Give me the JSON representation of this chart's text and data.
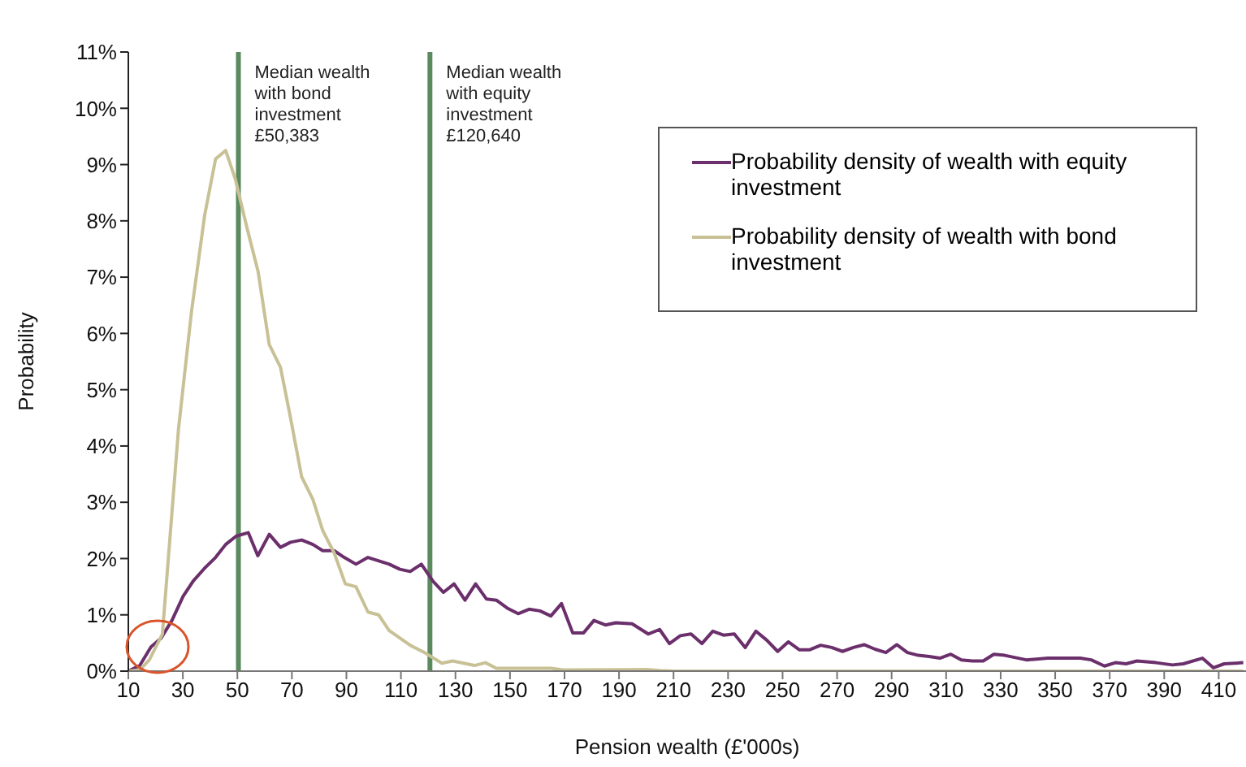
{
  "chart_data": {
    "type": "line",
    "xlabel": "Pension wealth (£'000s)",
    "ylabel": "Probability",
    "xlim": [
      10,
      420
    ],
    "xticks": [
      10,
      30,
      50,
      70,
      90,
      110,
      130,
      150,
      170,
      190,
      210,
      230,
      250,
      270,
      290,
      310,
      330,
      350,
      370,
      390,
      410
    ],
    "ylim": [
      0,
      11
    ],
    "yticks": [
      {
        "value": 0,
        "label": "0%"
      },
      {
        "value": 1,
        "label": "1%"
      },
      {
        "value": 2,
        "label": "2%"
      },
      {
        "value": 3,
        "label": "3%"
      },
      {
        "value": 4,
        "label": "4%"
      },
      {
        "value": 5,
        "label": "5%"
      },
      {
        "value": 6,
        "label": "6%"
      },
      {
        "value": 7,
        "label": "7%"
      },
      {
        "value": 8,
        "label": "8%"
      },
      {
        "value": 9,
        "label": "9%"
      },
      {
        "value": 10,
        "label": "10%"
      },
      {
        "value": 11,
        "label": "11%"
      }
    ],
    "grid": false,
    "legend": "top right",
    "marker": "none",
    "line_style": "solid",
    "ref_lines": [
      {
        "axis": "x",
        "value": 50.383,
        "label": "Median wealth with bond investment £50,383",
        "color": "#5a8a5e"
      },
      {
        "axis": "x",
        "value": 120.64,
        "label": "Median wealth with equity investment £120,640",
        "color": "#5a8a5e"
      }
    ],
    "series": [
      {
        "name": "Probability density of wealth with equity investment",
        "color": "#6b2f6b",
        "x": [
          10,
          14.2,
          18.3,
          21.9,
          26,
          30.1,
          33.8,
          38,
          42,
          45.7,
          49.6,
          54,
          57.5,
          61.7,
          65.8,
          69.5,
          73.6,
          77.7,
          81.3,
          85.5,
          89.2,
          93.5,
          97.9,
          105.7,
          109.6,
          113.4,
          117.5,
          121.7,
          125.6,
          129.5,
          133.5,
          137.4,
          141.4,
          145,
          149,
          153,
          157,
          161,
          165,
          168.9,
          173,
          177,
          180.8,
          185,
          188.8,
          194.8,
          200.7,
          204.9,
          208.5,
          212.5,
          216.4,
          220.4,
          224.4,
          228.3,
          232.3,
          236.3,
          240.2,
          244.2,
          248.2,
          252.1,
          256.1,
          260,
          264,
          268,
          272,
          276,
          279.9,
          283.9,
          287.9,
          291.9,
          295.8,
          299.8,
          303.8,
          307.7,
          311.7,
          315.6,
          319.6,
          323.6,
          327.5,
          331.5,
          339.4,
          347.3,
          359.2,
          363.2,
          368.1,
          372.1,
          376,
          380,
          387,
          393,
          397,
          404,
          408,
          412,
          419
        ],
        "values": [
          0,
          0.1,
          0.43,
          0.58,
          0.9,
          1.33,
          1.6,
          1.83,
          2.02,
          2.25,
          2.4,
          2.46,
          2.05,
          2.43,
          2.2,
          2.29,
          2.33,
          2.25,
          2.14,
          2.14,
          2.02,
          1.9,
          2.02,
          1.9,
          1.81,
          1.77,
          1.9,
          1.6,
          1.4,
          1.55,
          1.26,
          1.55,
          1.28,
          1.26,
          1.12,
          1.02,
          1.1,
          1.07,
          0.98,
          1.2,
          0.68,
          0.68,
          0.9,
          0.82,
          0.86,
          0.84,
          0.66,
          0.74,
          0.49,
          0.63,
          0.66,
          0.49,
          0.71,
          0.64,
          0.66,
          0.42,
          0.71,
          0.55,
          0.35,
          0.52,
          0.38,
          0.38,
          0.46,
          0.42,
          0.35,
          0.42,
          0.47,
          0.39,
          0.33,
          0.47,
          0.33,
          0.28,
          0.26,
          0.23,
          0.3,
          0.2,
          0.18,
          0.18,
          0.3,
          0.28,
          0.2,
          0.23,
          0.23,
          0.2,
          0.09,
          0.15,
          0.13,
          0.18,
          0.15,
          0.11,
          0.13,
          0.23,
          0.06,
          0.13,
          0.15
        ]
      },
      {
        "name": "Probability density of wealth with bond investment",
        "color": "#c9c196",
        "x": [
          10,
          14.2,
          17.7,
          22.5,
          28.4,
          33.2,
          38,
          42,
          45.7,
          49.2,
          53.4,
          57.6,
          61.7,
          65.8,
          69.5,
          73.6,
          77.7,
          81.3,
          85.5,
          89.6,
          93.5,
          97.9,
          101.8,
          105.7,
          113.4,
          119,
          125,
          129,
          137,
          141,
          145,
          150,
          165,
          170,
          200,
          205,
          210,
          300,
          419
        ],
        "values": [
          0,
          0.02,
          0.2,
          0.66,
          4.3,
          6.4,
          8.1,
          9.1,
          9.25,
          8.75,
          7.9,
          7.1,
          5.8,
          5.4,
          4.5,
          3.45,
          3.05,
          2.5,
          2.1,
          1.55,
          1.5,
          1.05,
          1.0,
          0.72,
          0.46,
          0.32,
          0.14,
          0.18,
          0.1,
          0.15,
          0.05,
          0.05,
          0.05,
          0.02,
          0.03,
          0.01,
          0,
          0,
          0
        ]
      }
    ]
  }
}
